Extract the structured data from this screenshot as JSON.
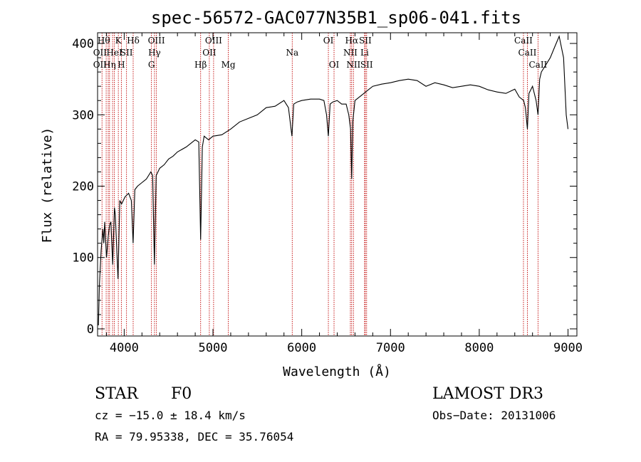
{
  "chart_data": {
    "type": "line",
    "title": "spec-56572-GAC077N35B1_sp06-041.fits",
    "xlabel": "Wavelength (Å)",
    "ylabel": "Flux (relative)",
    "xlim": [
      3700,
      9100
    ],
    "ylim": [
      -10,
      415
    ],
    "xticks": [
      4000,
      5000,
      6000,
      7000,
      8000,
      9000
    ],
    "xtick_labels": [
      "4000",
      "5000",
      "6000",
      "7000",
      "8000",
      "9000"
    ],
    "yticks": [
      0,
      100,
      200,
      300,
      400
    ],
    "ytick_labels": [
      "0",
      "100",
      "200",
      "300",
      "400"
    ],
    "grid": false,
    "series": [
      {
        "color": "#000000",
        "x": [
          3710,
          3720,
          3740,
          3760,
          3770,
          3780,
          3800,
          3820,
          3835,
          3850,
          3870,
          3890,
          3900,
          3930,
          3950,
          3970,
          3990,
          4010,
          4050,
          4080,
          4100,
          4120,
          4150,
          4200,
          4250,
          4300,
          4320,
          4340,
          4360,
          4400,
          4450,
          4500,
          4550,
          4600,
          4700,
          4800,
          4840,
          4861,
          4880,
          4900,
          4950,
          5000,
          5100,
          5200,
          5300,
          5400,
          5500,
          5600,
          5700,
          5800,
          5850,
          5890,
          5910,
          5950,
          6000,
          6100,
          6200,
          6250,
          6280,
          6300,
          6320,
          6350,
          6400,
          6450,
          6500,
          6530,
          6550,
          6563,
          6575,
          6600,
          6650,
          6700,
          6750,
          6800,
          6900,
          7000,
          7100,
          7200,
          7300,
          7400,
          7500,
          7600,
          7700,
          7800,
          7900,
          8000,
          8100,
          8200,
          8300,
          8400,
          8450,
          8500,
          8520,
          8542,
          8560,
          8600,
          8640,
          8662,
          8680,
          8700,
          8750,
          8800,
          8850,
          8900,
          8950,
          8980,
          9000
        ],
        "y": [
          5,
          60,
          110,
          140,
          120,
          150,
          100,
          130,
          145,
          150,
          90,
          170,
          160,
          70,
          180,
          175,
          180,
          185,
          190,
          180,
          120,
          195,
          200,
          205,
          210,
          220,
          215,
          90,
          215,
          225,
          230,
          238,
          242,
          248,
          255,
          265,
          262,
          125,
          255,
          270,
          265,
          270,
          272,
          280,
          290,
          295,
          300,
          310,
          312,
          320,
          310,
          270,
          315,
          318,
          320,
          322,
          322,
          320,
          300,
          270,
          315,
          318,
          320,
          315,
          315,
          300,
          280,
          210,
          290,
          320,
          325,
          330,
          335,
          340,
          343,
          345,
          348,
          350,
          348,
          340,
          345,
          342,
          338,
          340,
          342,
          340,
          335,
          332,
          330,
          336,
          325,
          320,
          310,
          280,
          330,
          340,
          320,
          300,
          350,
          360,
          370,
          380,
          395,
          410,
          380,
          300,
          280
        ]
      }
    ],
    "line_markers": {
      "x": [
        3750,
        3797,
        3820,
        3835,
        3869,
        3889,
        3934,
        3968,
        4026,
        4101,
        4307,
        4341,
        4363,
        4861,
        4959,
        5007,
        5173,
        5893,
        6300,
        6364,
        6548,
        6563,
        6583,
        6708,
        6716,
        6731,
        8498,
        8542,
        8662
      ],
      "color": "#c00000",
      "labels": [
        {
          "text": "Hθ",
          "x": 3770,
          "row": 1
        },
        {
          "text": "K",
          "x": 3934,
          "row": 1
        },
        {
          "text": "Hδ",
          "x": 4101,
          "row": 1
        },
        {
          "text": "OIII",
          "x": 4363,
          "row": 1
        },
        {
          "text": "OIII",
          "x": 5007,
          "row": 1
        },
        {
          "text": "OI",
          "x": 6300,
          "row": 1
        },
        {
          "text": "Hα",
          "x": 6563,
          "row": 1
        },
        {
          "text": "SII",
          "x": 6716,
          "row": 1
        },
        {
          "text": "CaII",
          "x": 8498,
          "row": 1
        },
        {
          "text": "OII",
          "x": 3727,
          "row": 2
        },
        {
          "text": "HeI",
          "x": 3889,
          "row": 2
        },
        {
          "text": "SII",
          "x": 4026,
          "row": 2
        },
        {
          "text": "Hγ",
          "x": 4341,
          "row": 2
        },
        {
          "text": "OII",
          "x": 4959,
          "row": 2
        },
        {
          "text": "Na",
          "x": 5893,
          "row": 2
        },
        {
          "text": "NII",
          "x": 6548,
          "row": 2
        },
        {
          "text": "Li",
          "x": 6708,
          "row": 2
        },
        {
          "text": "CaII",
          "x": 8542,
          "row": 2
        },
        {
          "text": "OII",
          "x": 3727,
          "row": 3
        },
        {
          "text": "Hη",
          "x": 3835,
          "row": 3
        },
        {
          "text": "H",
          "x": 3968,
          "row": 3
        },
        {
          "text": "G",
          "x": 4307,
          "row": 3
        },
        {
          "text": "Hβ",
          "x": 4861,
          "row": 3
        },
        {
          "text": "Mg",
          "x": 5173,
          "row": 3
        },
        {
          "text": "OI",
          "x": 6364,
          "row": 3
        },
        {
          "text": "NII",
          "x": 6583,
          "row": 3
        },
        {
          "text": "SII",
          "x": 6731,
          "row": 3
        },
        {
          "text": "CaII",
          "x": 8662,
          "row": 3
        }
      ]
    }
  },
  "info": {
    "class": "STAR",
    "subclass": "F0",
    "survey": "LAMOST DR3",
    "cz": "cz = −15.0 ± 18.4 km/s",
    "obs_date": "Obs−Date: 20131006",
    "radec": "RA =  79.95338, DEC =  35.76054"
  }
}
